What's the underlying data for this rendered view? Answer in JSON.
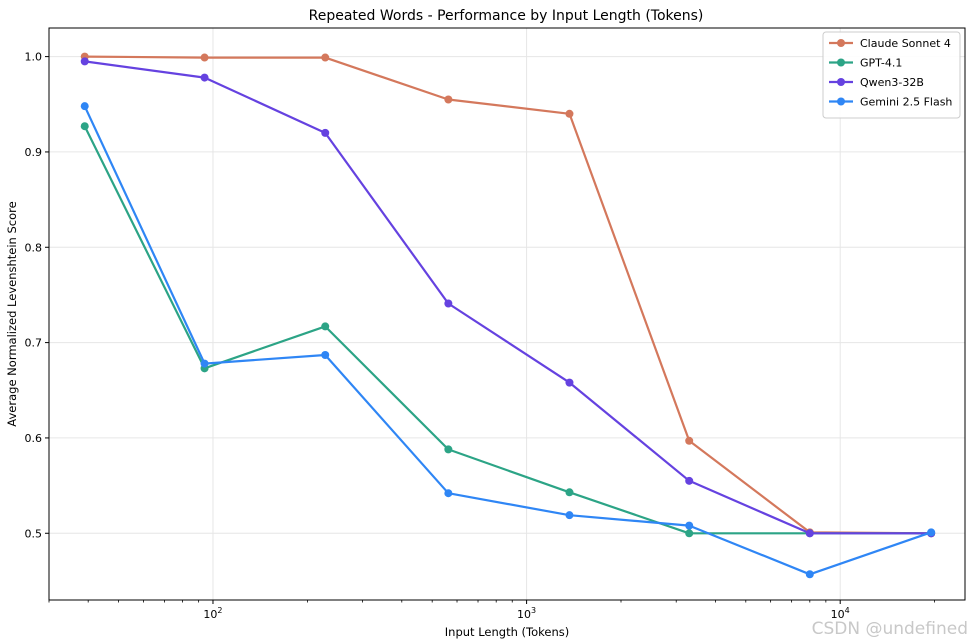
{
  "chart_data": {
    "type": "line",
    "title": "Repeated Words - Performance by Input Length (Tokens)",
    "xlabel": "Input Length (Tokens)",
    "ylabel": "Average Normalized Levenshtein Score",
    "x_scale": "log",
    "xlim": [
      30,
      25000
    ],
    "ylim": [
      0.43,
      1.03
    ],
    "x_ticks": [
      100,
      1000,
      10000
    ],
    "x_tick_labels": [
      {
        "base": "10",
        "exp": "2"
      },
      {
        "base": "10",
        "exp": "3"
      },
      {
        "base": "10",
        "exp": "4"
      }
    ],
    "y_ticks": [
      0.5,
      0.6,
      0.7,
      0.8,
      0.9,
      1.0
    ],
    "y_tick_labels": [
      "0.5",
      "0.6",
      "0.7",
      "0.8",
      "0.9",
      "1.0"
    ],
    "grid": true,
    "legend_position": "top-right",
    "x": [
      39,
      94,
      228,
      563,
      1370,
      3300,
      8000,
      19500
    ],
    "series": [
      {
        "name": "Claude Sonnet 4",
        "color": "#d4785c",
        "values": [
          1.0,
          0.999,
          0.999,
          0.955,
          0.94,
          0.597,
          0.501,
          0.5
        ]
      },
      {
        "name": "GPT-4.1",
        "color": "#2ca486",
        "values": [
          0.927,
          0.673,
          0.717,
          0.588,
          0.543,
          0.5,
          0.5,
          0.5
        ]
      },
      {
        "name": "Qwen3-32B",
        "color": "#6542e0",
        "values": [
          0.995,
          0.978,
          0.92,
          0.741,
          0.658,
          0.555,
          0.5,
          0.5
        ]
      },
      {
        "name": "Gemini 2.5 Flash",
        "color": "#2f86f5",
        "values": [
          0.948,
          0.678,
          0.687,
          0.542,
          0.519,
          0.508,
          0.457,
          0.501
        ]
      }
    ]
  },
  "watermark": "CSDN @undefined"
}
